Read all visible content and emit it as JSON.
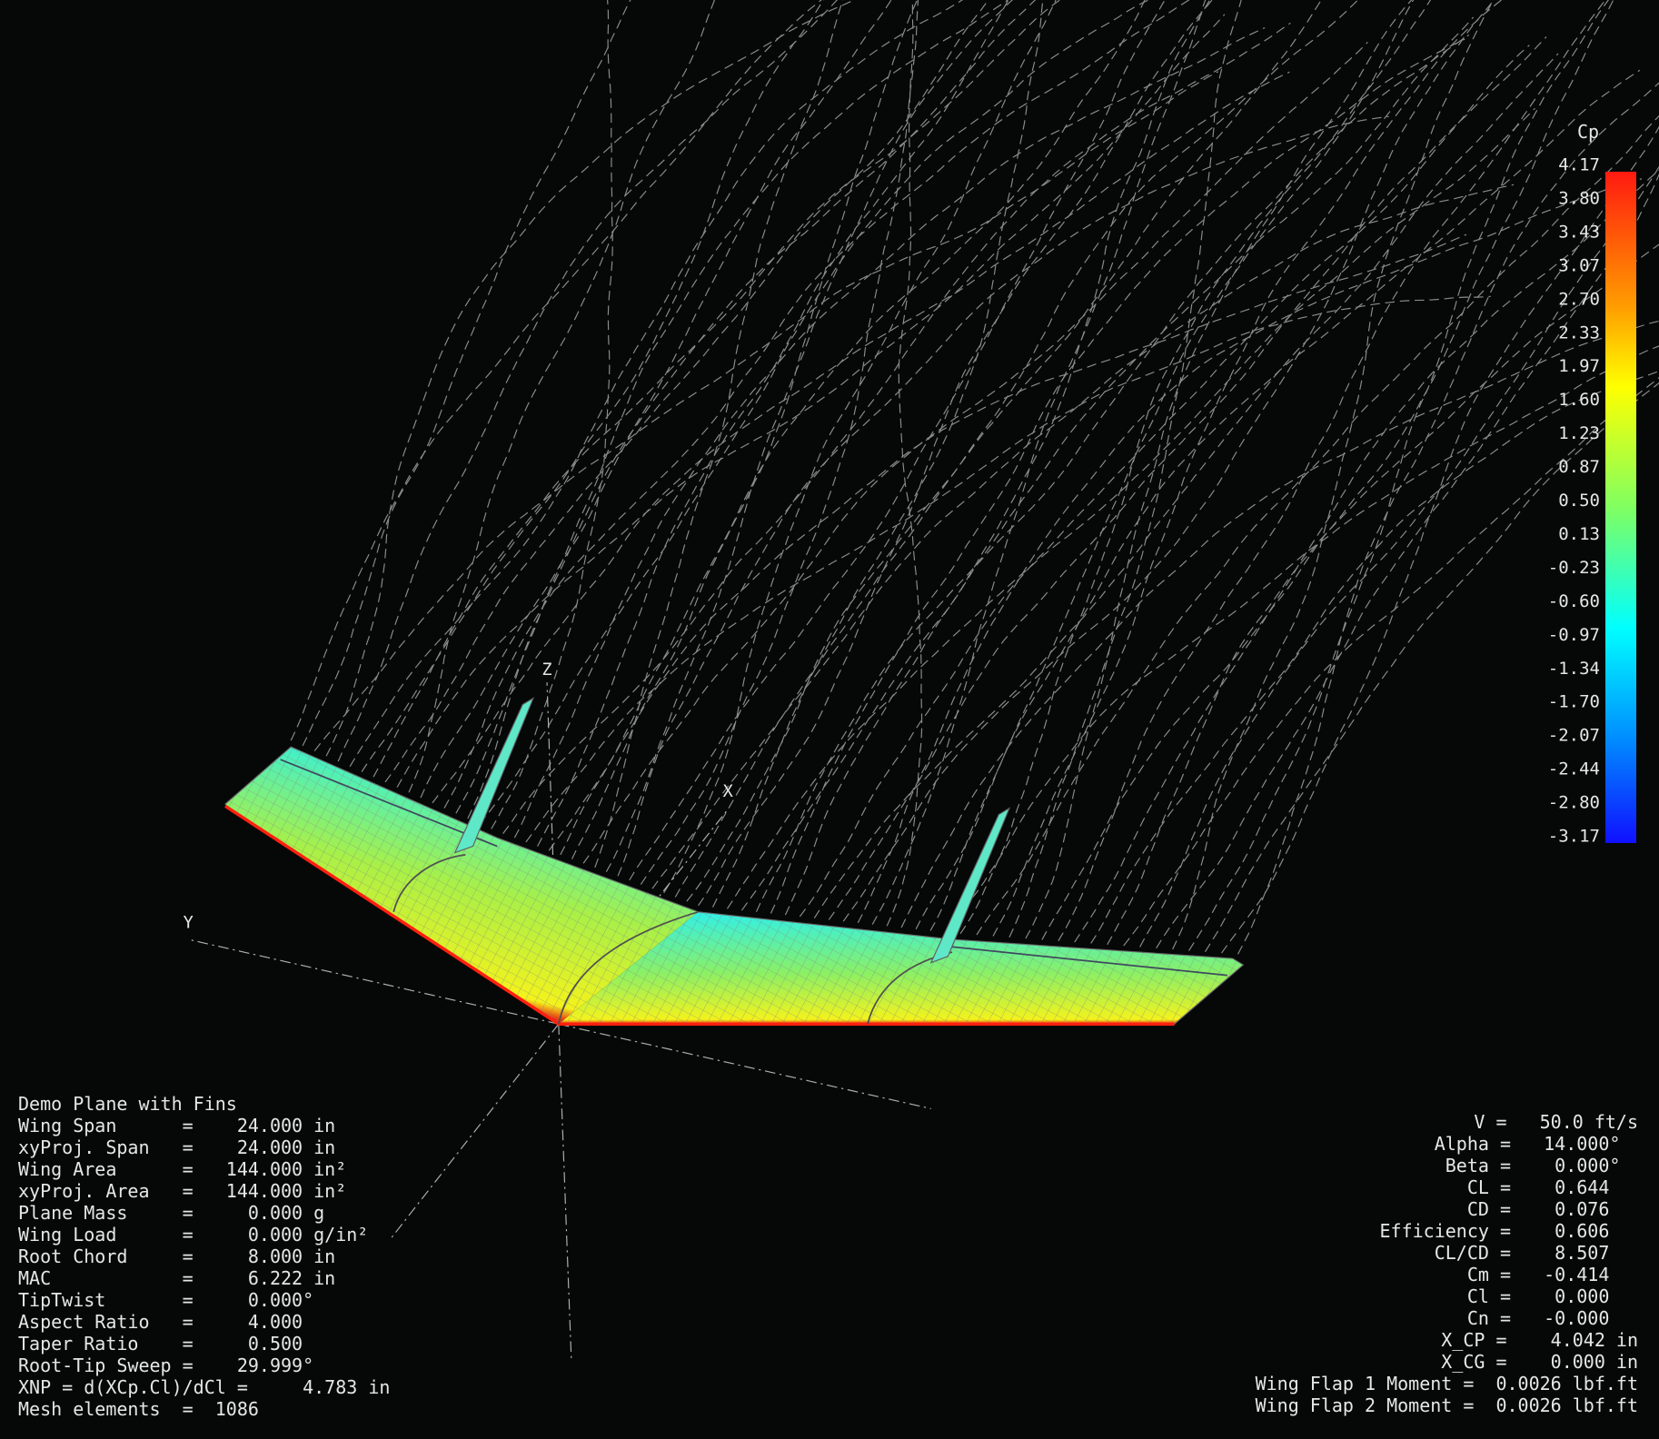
{
  "view_labels": {
    "z": "Z",
    "x": "X",
    "y": "Y"
  },
  "plane_info": {
    "title": "Demo Plane with Fins",
    "lines": [
      "Wing Span      =    24.000 in",
      "xyProj. Span   =    24.000 in",
      "Wing Area      =   144.000 in²",
      "xyProj. Area   =   144.000 in²",
      "Plane Mass     =     0.000 g",
      "Wing Load      =     0.000 g/in²",
      "Root Chord     =     8.000 in",
      "MAC            =     6.222 in",
      "TipTwist       =     0.000°",
      "Aspect Ratio   =     4.000",
      "Taper Ratio    =     0.500",
      "Root-Tip Sweep =    29.999°",
      "XNP = d(XCp.Cl)/dCl =     4.783 in",
      "Mesh elements  =  1086"
    ]
  },
  "results": {
    "rows": [
      {
        "label": "V =",
        "value": "   50.0 ft/s"
      },
      {
        "label": "Alpha =",
        "value": "   14.000°"
      },
      {
        "label": "Beta =",
        "value": "    0.000°"
      },
      {
        "label": "CL =",
        "value": "    0.644"
      },
      {
        "label": "CD =",
        "value": "    0.076"
      },
      {
        "label": "Efficiency =",
        "value": "    0.606"
      },
      {
        "label": "CL/CD =",
        "value": "    8.507"
      },
      {
        "label": "Cm =",
        "value": "   -0.414"
      },
      {
        "label": "Cl =",
        "value": "    0.000"
      },
      {
        "label": "Cn =",
        "value": "   -0.000"
      },
      {
        "label": "X_CP =",
        "value": "    4.042 in"
      },
      {
        "label": "X_CG =",
        "value": "    0.000 in"
      },
      {
        "label": "Wing Flap 1 Moment =",
        "value": "  0.0026 lbf.ft"
      },
      {
        "label": "Wing Flap 2 Moment =",
        "value": "  0.0026 lbf.ft"
      }
    ]
  },
  "legend": {
    "title": "Cp",
    "ticks": [
      "4.17",
      "3.80",
      "3.43",
      "3.07",
      "2.70",
      "2.33",
      "1.97",
      "1.60",
      "1.23",
      "0.87",
      "0.50",
      "0.13",
      "-0.23",
      "-0.60",
      "-0.97",
      "-1.34",
      "-1.70",
      "-2.07",
      "-2.44",
      "-2.80",
      "-3.17"
    ]
  }
}
